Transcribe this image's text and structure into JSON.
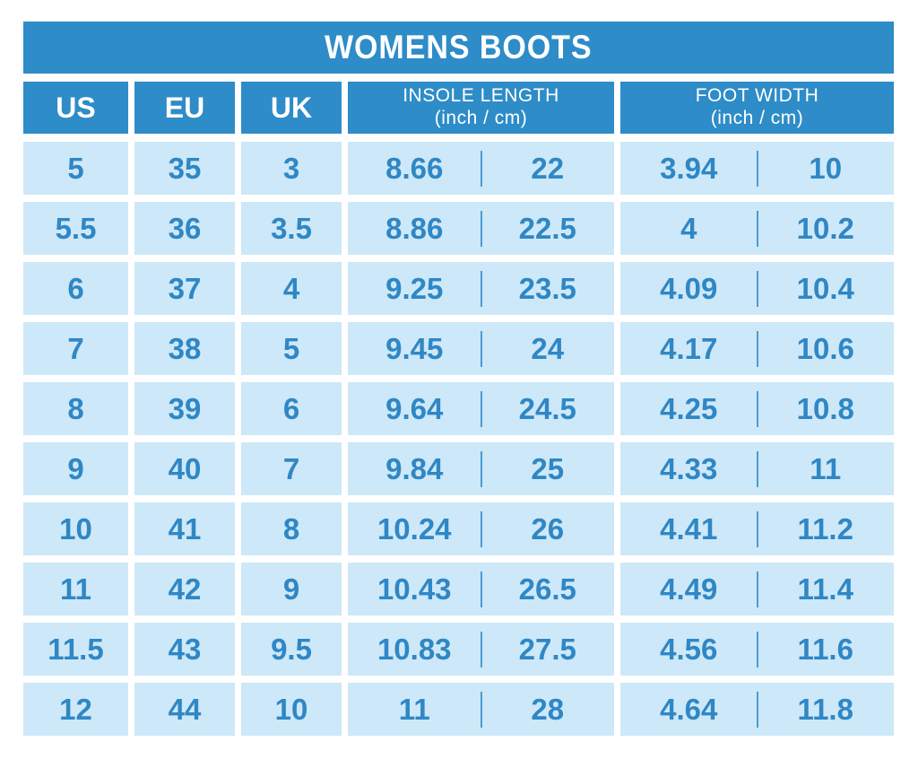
{
  "colors": {
    "table_blue": "#2E8CC8",
    "cell_light_blue": "#CDE8F8",
    "value_text_blue": "#2F87C5",
    "divider_blue": "#4A9CD2",
    "title_text": "#FFFFFF",
    "background": "#FFFFFF"
  },
  "chart_data": {
    "type": "table",
    "title": "WOMENS BOOTS",
    "header": {
      "us": "US",
      "eu": "EU",
      "uk": "UK",
      "insole": {
        "label": "INSOLE LENGTH",
        "sub": "(inch / cm)"
      },
      "foot": {
        "label": "FOOT WIDTH",
        "sub": "(inch / cm)"
      }
    },
    "rows": [
      {
        "us": "5",
        "eu": "35",
        "uk": "3",
        "insole_inch": "8.66",
        "insole_cm": "22",
        "foot_inch": "3.94",
        "foot_cm": "10"
      },
      {
        "us": "5.5",
        "eu": "36",
        "uk": "3.5",
        "insole_inch": "8.86",
        "insole_cm": "22.5",
        "foot_inch": "4",
        "foot_cm": "10.2"
      },
      {
        "us": "6",
        "eu": "37",
        "uk": "4",
        "insole_inch": "9.25",
        "insole_cm": "23.5",
        "foot_inch": "4.09",
        "foot_cm": "10.4"
      },
      {
        "us": "7",
        "eu": "38",
        "uk": "5",
        "insole_inch": "9.45",
        "insole_cm": "24",
        "foot_inch": "4.17",
        "foot_cm": "10.6"
      },
      {
        "us": "8",
        "eu": "39",
        "uk": "6",
        "insole_inch": "9.64",
        "insole_cm": "24.5",
        "foot_inch": "4.25",
        "foot_cm": "10.8"
      },
      {
        "us": "9",
        "eu": "40",
        "uk": "7",
        "insole_inch": "9.84",
        "insole_cm": "25",
        "foot_inch": "4.33",
        "foot_cm": "11"
      },
      {
        "us": "10",
        "eu": "41",
        "uk": "8",
        "insole_inch": "10.24",
        "insole_cm": "26",
        "foot_inch": "4.41",
        "foot_cm": "11.2"
      },
      {
        "us": "11",
        "eu": "42",
        "uk": "9",
        "insole_inch": "10.43",
        "insole_cm": "26.5",
        "foot_inch": "4.49",
        "foot_cm": "11.4"
      },
      {
        "us": "11.5",
        "eu": "43",
        "uk": "9.5",
        "insole_inch": "10.83",
        "insole_cm": "27.5",
        "foot_inch": "4.56",
        "foot_cm": "11.6"
      },
      {
        "us": "12",
        "eu": "44",
        "uk": "10",
        "insole_inch": "11",
        "insole_cm": "28",
        "foot_inch": "4.64",
        "foot_cm": "11.8"
      }
    ]
  }
}
